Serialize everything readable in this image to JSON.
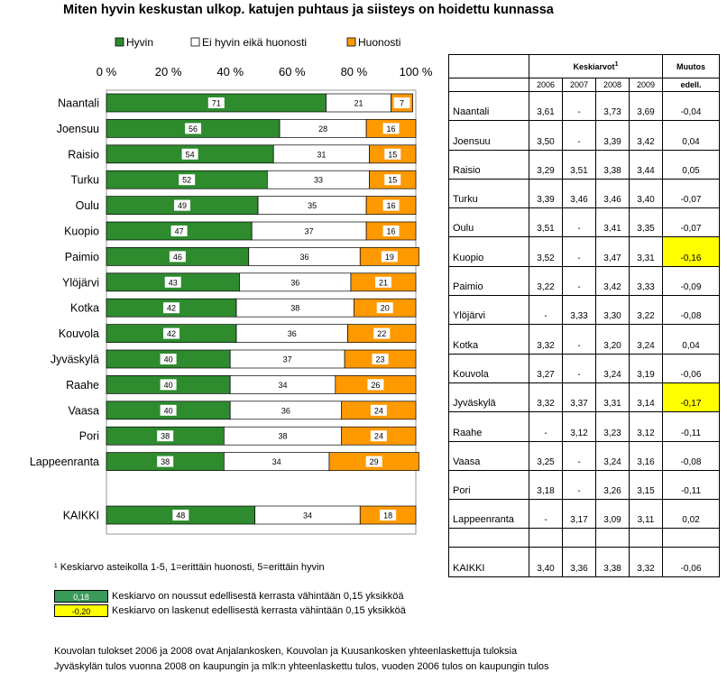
{
  "title": "Miten hyvin keskustan ulkop. katujen puhtaus ja siisteys on hoidettu kunnassa",
  "colors": {
    "good": "#2e8b2e",
    "neutral": "#ffffff",
    "bad": "#ff9900",
    "positive_marker": "#3a9a5a",
    "negative_marker": "#ffff00"
  },
  "chart_data": {
    "type": "bar",
    "orientation": "horizontal-stacked-100",
    "categories": [
      "Naantali",
      "Joensuu",
      "Raisio",
      "Turku",
      "Oulu",
      "Kuopio",
      "Paimio",
      "Ylöjärvi",
      "Kotka",
      "Kouvola",
      "Jyväskylä",
      "Raahe",
      "Vaasa",
      "Pori",
      "Lappeenranta",
      "KAIKKI"
    ],
    "series": [
      {
        "name": "Hyvin",
        "values": [
          71,
          56,
          54,
          52,
          49,
          47,
          46,
          43,
          42,
          42,
          40,
          40,
          40,
          38,
          38,
          48
        ]
      },
      {
        "name": "Ei hyvin eikä huonosti",
        "values": [
          21,
          28,
          31,
          33,
          35,
          37,
          36,
          36,
          38,
          36,
          37,
          34,
          36,
          38,
          34,
          34
        ]
      },
      {
        "name": "Huonosti",
        "values": [
          7,
          16,
          15,
          15,
          16,
          16,
          19,
          21,
          20,
          22,
          23,
          26,
          24,
          24,
          29,
          18
        ]
      }
    ],
    "xticks": [
      "0 %",
      "20 %",
      "40 %",
      "60 %",
      "80 %",
      "100 %"
    ],
    "xlim": [
      0,
      100
    ],
    "legend": "top"
  },
  "table": {
    "header": "Keskiarvot",
    "header_sup": "1",
    "change_header_line1": "Muutos",
    "change_header_line2": "edell.",
    "years": [
      "2006",
      "2007",
      "2008",
      "2009"
    ],
    "rows": [
      {
        "name": "Naantali",
        "v": [
          "3,61",
          "-",
          "3,73",
          "3,69"
        ],
        "change": "-0,04",
        "hl": ""
      },
      {
        "name": "Joensuu",
        "v": [
          "3,50",
          "-",
          "3,39",
          "3,42"
        ],
        "change": "0,04",
        "hl": ""
      },
      {
        "name": "Raisio",
        "v": [
          "3,29",
          "3,51",
          "3,38",
          "3,44"
        ],
        "change": "0,05",
        "hl": ""
      },
      {
        "name": "Turku",
        "v": [
          "3,39",
          "3,46",
          "3,46",
          "3,40"
        ],
        "change": "-0,07",
        "hl": ""
      },
      {
        "name": "Oulu",
        "v": [
          "3,51",
          "-",
          "3,41",
          "3,35"
        ],
        "change": "-0,07",
        "hl": ""
      },
      {
        "name": "Kuopio",
        "v": [
          "3,52",
          "-",
          "3,47",
          "3,31"
        ],
        "change": "-0,16",
        "hl": "neg"
      },
      {
        "name": "Paimio",
        "v": [
          "3,22",
          "-",
          "3,42",
          "3,33"
        ],
        "change": "-0,09",
        "hl": ""
      },
      {
        "name": "Ylöjärvi",
        "v": [
          "-",
          "3,33",
          "3,30",
          "3,22"
        ],
        "change": "-0,08",
        "hl": ""
      },
      {
        "name": "Kotka",
        "v": [
          "3,32",
          "-",
          "3,20",
          "3,24"
        ],
        "change": "0,04",
        "hl": ""
      },
      {
        "name": "Kouvola",
        "v": [
          "3,27",
          "-",
          "3,24",
          "3,19"
        ],
        "change": "-0,06",
        "hl": ""
      },
      {
        "name": "Jyväskylä",
        "v": [
          "3,32",
          "3,37",
          "3,31",
          "3,14"
        ],
        "change": "-0,17",
        "hl": "neg"
      },
      {
        "name": "Raahe",
        "v": [
          "-",
          "3,12",
          "3,23",
          "3,12"
        ],
        "change": "-0,11",
        "hl": ""
      },
      {
        "name": "Vaasa",
        "v": [
          "3,25",
          "-",
          "3,24",
          "3,16"
        ],
        "change": "-0,08",
        "hl": ""
      },
      {
        "name": "Pori",
        "v": [
          "3,18",
          "-",
          "3,26",
          "3,15"
        ],
        "change": "-0,11",
        "hl": ""
      },
      {
        "name": "Lappeenranta",
        "v": [
          "-",
          "3,17",
          "3,09",
          "3,11"
        ],
        "change": "0,02",
        "hl": ""
      }
    ],
    "total": {
      "name": "KAIKKI",
      "v": [
        "3,40",
        "3,36",
        "3,38",
        "3,32"
      ],
      "change": "-0,06"
    }
  },
  "footnote": "¹ Keskiarvo asteikolla 1-5, 1=erittäin huonosti, 5=erittäin hyvin",
  "legend_positive": {
    "value": "0,18",
    "text": "Keskiarvo on noussut edellisestä kerrasta vähintään 0,15 yksikköä"
  },
  "legend_negative": {
    "value": "-0,20",
    "text": "Keskiarvo on laskenut edellisestä kerrasta vähintään 0,15 yksikköä"
  },
  "note1": "Kouvolan tulokset 2006 ja 2008 ovat Anjalankosken, Kouvolan ja Kuusankosken yhteenlaskettuja tuloksia",
  "note2": "Jyväskylän tulos vuonna 2008 on kaupungin ja mlk:n yhteenlaskettu  tulos, vuoden 2006 tulos on  kaupungin tulos"
}
